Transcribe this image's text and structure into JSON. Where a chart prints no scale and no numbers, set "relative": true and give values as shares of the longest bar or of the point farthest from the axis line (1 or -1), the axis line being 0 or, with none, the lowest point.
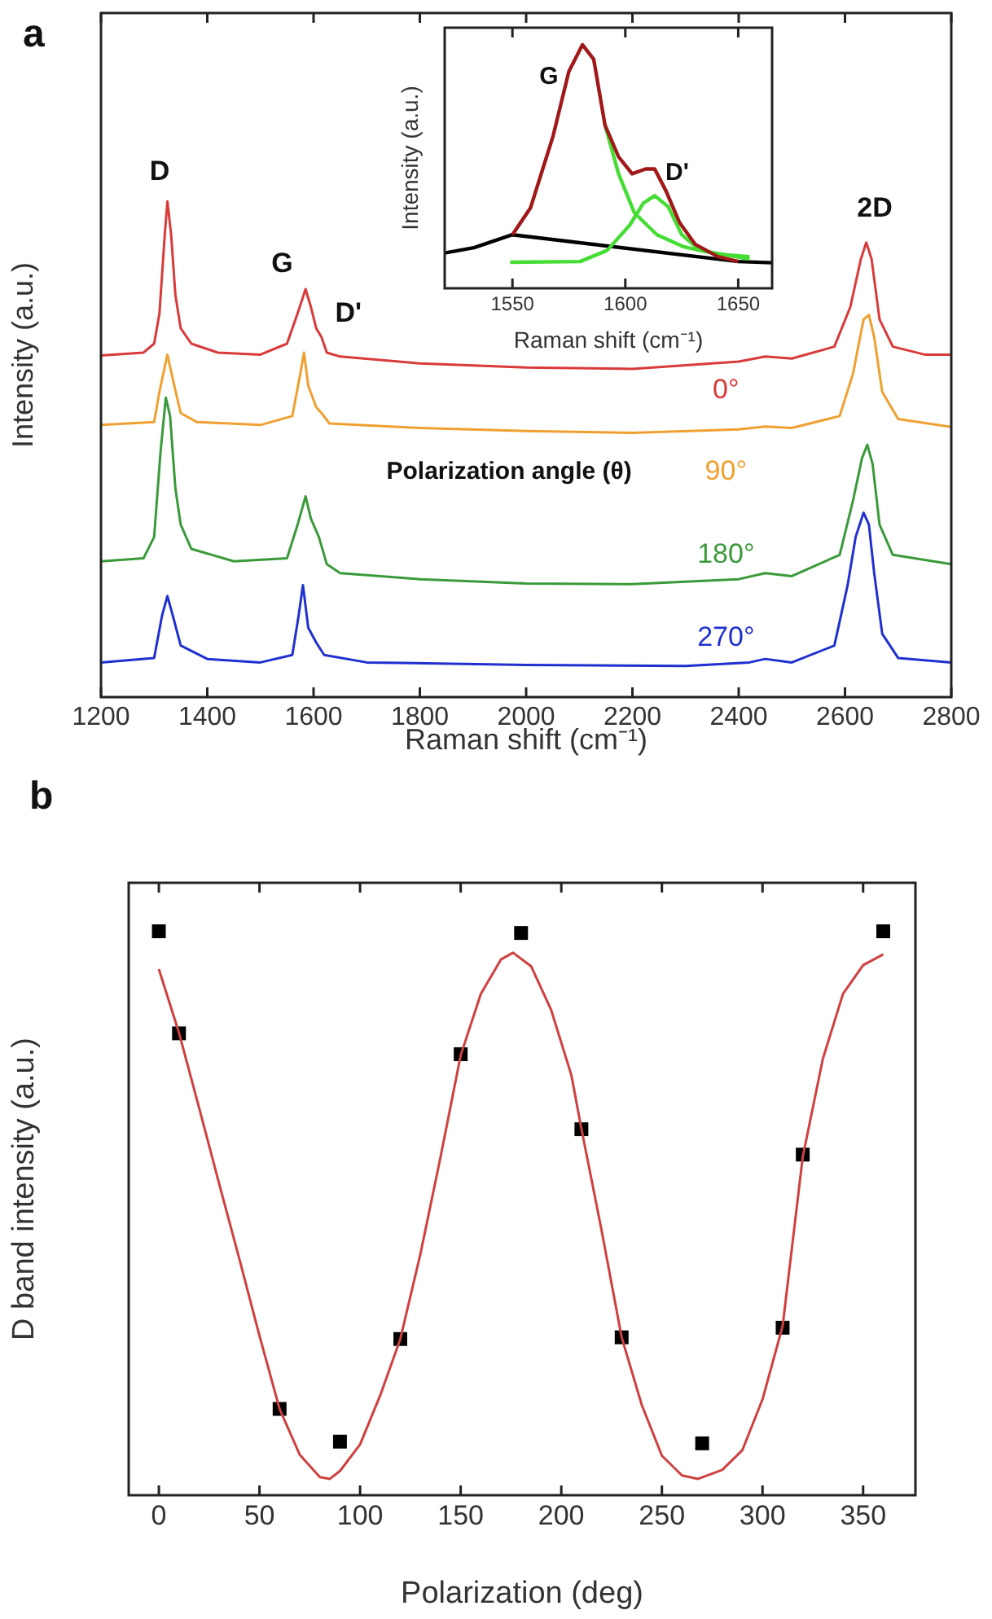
{
  "chart_data": [
    {
      "type": "line",
      "title": "a",
      "xlabel": "Raman shift (cm⁻¹)",
      "ylabel": "Intensity (a.u.)",
      "relative": true,
      "xlim": [
        1200,
        2800
      ],
      "xticks": [
        1200,
        1400,
        1600,
        1800,
        2000,
        2200,
        2400,
        2600,
        2800
      ],
      "marker": "none",
      "legend_title": "Polarization angle (θ)",
      "annotations": [
        "D",
        "G",
        "D'",
        "2D"
      ],
      "series": [
        {
          "name": "0°",
          "color": "#d93a3a",
          "x": [
            1200,
            1280,
            1300,
            1310,
            1320,
            1325,
            1332,
            1340,
            1350,
            1370,
            1420,
            1500,
            1550,
            1570,
            1585,
            1595,
            1605,
            1615,
            1625,
            1650,
            1800,
            2000,
            2200,
            2400,
            2450,
            2500,
            2580,
            2610,
            2630,
            2640,
            2650,
            2665,
            2690,
            2750,
            2800
          ],
          "values": [
            0.689,
            0.695,
            0.713,
            0.774,
            0.933,
            1.0,
            0.933,
            0.811,
            0.744,
            0.713,
            0.695,
            0.691,
            0.713,
            0.774,
            0.823,
            0.787,
            0.744,
            0.726,
            0.695,
            0.687,
            0.673,
            0.665,
            0.662,
            0.677,
            0.687,
            0.683,
            0.707,
            0.787,
            0.884,
            0.917,
            0.884,
            0.762,
            0.707,
            0.691,
            0.691
          ]
        },
        {
          "name": "90°",
          "color": "#f0a030",
          "x": [
            1200,
            1300,
            1310,
            1325,
            1338,
            1350,
            1380,
            1500,
            1560,
            1575,
            1582,
            1590,
            1605,
            1615,
            1630,
            1800,
            2000,
            2200,
            2400,
            2450,
            2500,
            2590,
            2615,
            2635,
            2645,
            2655,
            2670,
            2700,
            2800
          ],
          "values": [
            0.549,
            0.555,
            0.616,
            0.691,
            0.628,
            0.573,
            0.555,
            0.549,
            0.567,
            0.652,
            0.695,
            0.628,
            0.585,
            0.573,
            0.552,
            0.543,
            0.537,
            0.533,
            0.54,
            0.546,
            0.543,
            0.567,
            0.652,
            0.762,
            0.771,
            0.726,
            0.616,
            0.561,
            0.545
          ]
        },
        {
          "name": "180°",
          "color": "#3a9a3a",
          "x": [
            1200,
            1280,
            1300,
            1312,
            1322,
            1330,
            1340,
            1350,
            1370,
            1450,
            1550,
            1570,
            1585,
            1595,
            1610,
            1625,
            1650,
            1800,
            2000,
            2200,
            2400,
            2450,
            2500,
            2590,
            2615,
            2632,
            2642,
            2652,
            2665,
            2690,
            2800
          ],
          "values": [
            0.274,
            0.28,
            0.323,
            0.494,
            0.604,
            0.567,
            0.421,
            0.348,
            0.299,
            0.274,
            0.28,
            0.348,
            0.405,
            0.36,
            0.323,
            0.268,
            0.25,
            0.238,
            0.229,
            0.228,
            0.238,
            0.25,
            0.244,
            0.287,
            0.396,
            0.482,
            0.509,
            0.47,
            0.348,
            0.287,
            0.268
          ]
        },
        {
          "name": "270°",
          "color": "#2030d0",
          "x": [
            1200,
            1300,
            1315,
            1325,
            1335,
            1350,
            1400,
            1500,
            1560,
            1572,
            1580,
            1590,
            1605,
            1620,
            1700,
            2000,
            2300,
            2420,
            2450,
            2500,
            2580,
            2605,
            2620,
            2635,
            2645,
            2655,
            2670,
            2700,
            2800
          ],
          "values": [
            0.07,
            0.079,
            0.165,
            0.204,
            0.165,
            0.104,
            0.077,
            0.07,
            0.085,
            0.165,
            0.226,
            0.14,
            0.11,
            0.085,
            0.07,
            0.065,
            0.063,
            0.07,
            0.077,
            0.07,
            0.104,
            0.226,
            0.323,
            0.372,
            0.348,
            0.25,
            0.128,
            0.079,
            0.07
          ]
        }
      ]
    },
    {
      "type": "line",
      "xlabel": "Raman shift (cm⁻¹)",
      "ylabel": "Intensity (a.u.)",
      "relative": true,
      "xlim": [
        1520,
        1665
      ],
      "xticks": [
        1550,
        1600,
        1650
      ],
      "marker": "none",
      "annotations": [
        "G",
        "D'"
      ],
      "series": [
        {
          "color": "#000000",
          "x": [
            1520,
            1533,
            1550,
            1650,
            1665
          ],
          "values": [
            0.145,
            0.167,
            0.22,
            0.11,
            0.105
          ]
        },
        {
          "color": "#44dd33",
          "x": [
            1591,
            1597,
            1604,
            1614,
            1626,
            1641,
            1655
          ],
          "values": [
            0.67,
            0.47,
            0.31,
            0.22,
            0.17,
            0.14,
            0.13
          ]
        },
        {
          "color": "#44dd33",
          "x": [
            1549,
            1580,
            1592,
            1602,
            1608,
            1613,
            1619,
            1625,
            1633,
            1655
          ],
          "values": [
            0.107,
            0.11,
            0.156,
            0.26,
            0.35,
            0.38,
            0.335,
            0.22,
            0.156,
            0.12
          ]
        },
        {
          "color": "#a01818",
          "x": [
            1550,
            1558,
            1568,
            1575,
            1581,
            1586,
            1591,
            1597,
            1603,
            1609,
            1613,
            1618,
            1624,
            1631,
            1641,
            1650
          ],
          "values": [
            0.22,
            0.33,
            0.625,
            0.89,
            1.0,
            0.94,
            0.67,
            0.54,
            0.47,
            0.49,
            0.49,
            0.4,
            0.27,
            0.18,
            0.13,
            0.11
          ]
        }
      ]
    },
    {
      "type": "scatter",
      "title": "b",
      "xlabel": "Polarization (deg)",
      "ylabel": "D band intensity (a.u.)",
      "relative": true,
      "xlim": [
        -15,
        376
      ],
      "xticks": [
        0,
        50,
        100,
        150,
        200,
        250,
        300,
        350
      ],
      "marker": "square",
      "series": [
        {
          "color": "#000000",
          "x": [
            0,
            10,
            60,
            90,
            120,
            150,
            180,
            210,
            230,
            270,
            310,
            320,
            360
          ],
          "values": [
            1.0,
            0.819,
            0.153,
            0.095,
            0.277,
            0.782,
            0.997,
            0.649,
            0.28,
            0.092,
            0.297,
            0.604,
            1.0
          ]
        },
        {
          "type": "line",
          "marker": "none",
          "color": "#d04040",
          "x": [
            0,
            10,
            20,
            30,
            40,
            50,
            60,
            70,
            80,
            85,
            90,
            100,
            110,
            120,
            130,
            140,
            150,
            160,
            170,
            176,
            185,
            195,
            205,
            210,
            220,
            230,
            240,
            250,
            260,
            268,
            280,
            290,
            300,
            310,
            320,
            330,
            340,
            350,
            360
          ],
          "values": [
            0.933,
            0.82,
            0.687,
            0.552,
            0.419,
            0.283,
            0.153,
            0.072,
            0.032,
            0.029,
            0.043,
            0.09,
            0.177,
            0.277,
            0.428,
            0.6,
            0.78,
            0.889,
            0.95,
            0.962,
            0.938,
            0.86,
            0.745,
            0.65,
            0.47,
            0.28,
            0.16,
            0.07,
            0.035,
            0.029,
            0.045,
            0.08,
            0.17,
            0.3,
            0.6,
            0.774,
            0.889,
            0.94,
            0.959
          ]
        }
      ]
    }
  ]
}
